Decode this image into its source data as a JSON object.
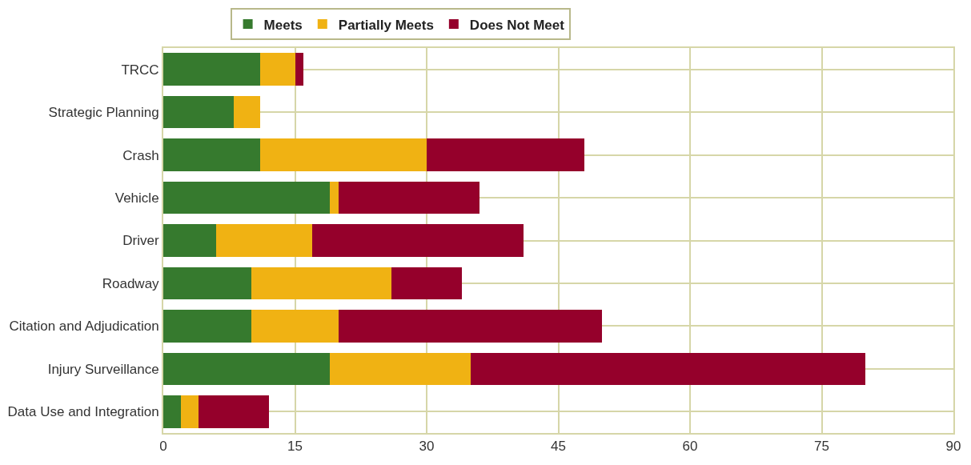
{
  "chart_data": {
    "type": "bar",
    "orientation": "horizontal",
    "stacked": true,
    "categories": [
      "TRCC",
      "Strategic Planning",
      "Crash",
      "Vehicle",
      "Driver",
      "Roadway",
      "Citation and Adjudication",
      "Injury Surveillance",
      "Data Use and Integration"
    ],
    "series": [
      {
        "name": "Meets",
        "color": "#367a2e",
        "values": [
          11,
          8,
          11,
          19,
          6,
          10,
          10,
          19,
          2
        ]
      },
      {
        "name": "Partially Meets",
        "color": "#f0b213",
        "values": [
          4,
          3,
          19,
          1,
          11,
          16,
          10,
          16,
          2
        ]
      },
      {
        "name": "Does Not Meet",
        "color": "#95002b",
        "values": [
          1,
          0,
          18,
          16,
          24,
          8,
          30,
          45,
          8
        ]
      }
    ],
    "xlim": [
      0,
      90
    ],
    "xticks": [
      0,
      15,
      30,
      45,
      60,
      75,
      90
    ],
    "grid": true,
    "legend": "top"
  }
}
